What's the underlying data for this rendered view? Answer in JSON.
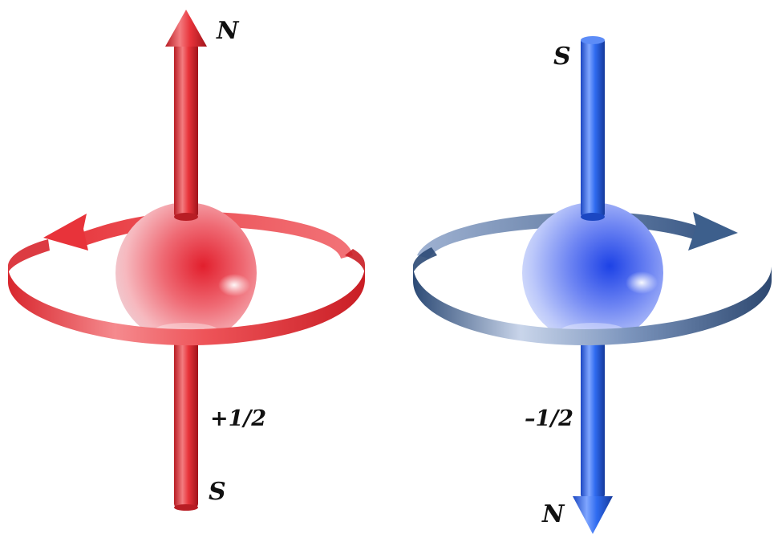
{
  "electrons": [
    {
      "id": "spin-up",
      "top_pole": "N",
      "bottom_pole": "S",
      "spin_value": "+1/2",
      "color": "#e8333a",
      "rotation": "counterclockwise"
    },
    {
      "id": "spin-down",
      "top_pole": "S",
      "bottom_pole": "N",
      "spin_value": "–1/2",
      "color": "#2f6bf0",
      "rotation": "clockwise"
    }
  ],
  "ring_colors": {
    "red": "#e63a3e",
    "blue": "#3d5f8c"
  }
}
